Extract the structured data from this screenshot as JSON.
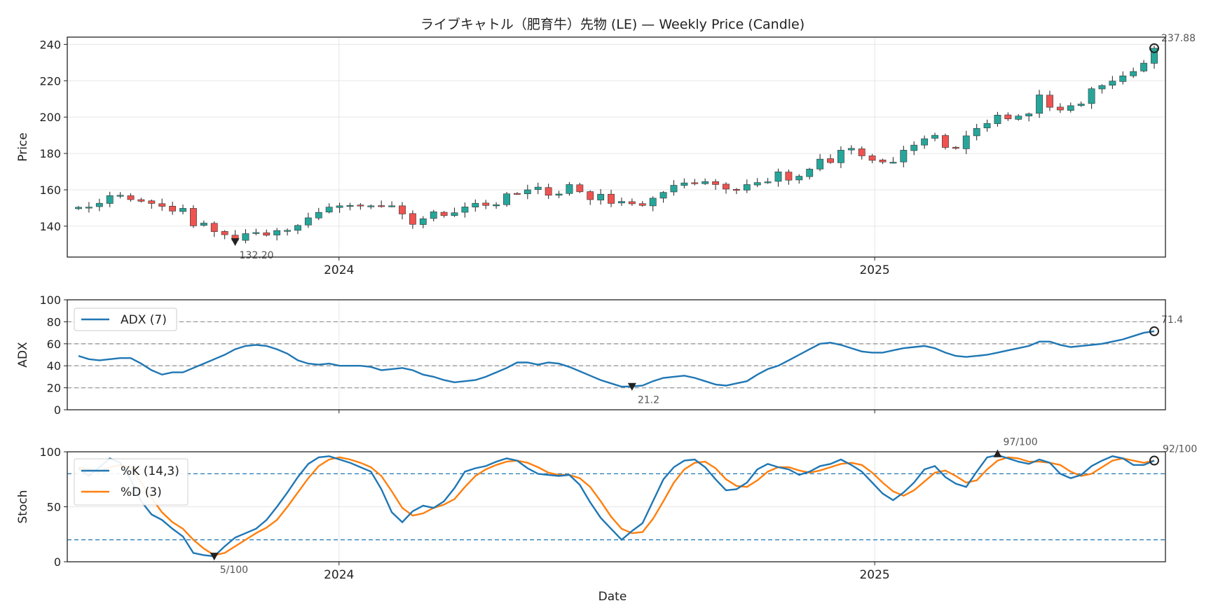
{
  "figure": {
    "title": "ライブキャトル（肥育牛）先物 (LE) — Weekly Price (Candle)",
    "xlabel": "Date",
    "x_ticks": [
      "2024",
      "2025"
    ],
    "colors": {
      "up": "#26a69a",
      "down": "#ef5350",
      "adx": "#1f77b4",
      "k": "#1f77b4",
      "d": "#ff7f0e",
      "ref": "#999999",
      "stoch_ref": "#1f77b4"
    }
  },
  "chart_data": [
    {
      "type": "candlestick",
      "ylabel": "Price",
      "ylim": [
        123,
        244
      ],
      "y_ticks": [
        140,
        160,
        180,
        200,
        220,
        240
      ],
      "grid": true,
      "x_start": "2023-07-07",
      "x_end": "2025-07-11",
      "x_ticks": [
        "2024",
        "2025"
      ],
      "close": [
        150.4,
        150.5,
        152.6,
        156.8,
        157.0,
        154.6,
        153.7,
        152.5,
        150.9,
        148.3,
        149.8,
        140.2,
        141.7,
        137.0,
        135.3,
        132.2,
        135.9,
        136.5,
        135.0,
        137.6,
        137.7,
        140.4,
        144.6,
        147.6,
        150.5,
        151.2,
        151.4,
        151.1,
        151.2,
        151.3,
        151.2,
        146.7,
        141.0,
        144.1,
        147.9,
        145.8,
        147.4,
        150.6,
        152.6,
        151.4,
        151.8,
        157.8,
        157.9,
        160.0,
        161.5,
        157.0,
        157.7,
        162.9,
        158.9,
        154.6,
        157.6,
        152.5,
        153.6,
        152.3,
        151.4,
        155.4,
        158.6,
        162.5,
        163.8,
        163.6,
        164.5,
        162.9,
        160.4,
        159.7,
        162.9,
        164.0,
        164.4,
        169.9,
        165.3,
        167.5,
        171.4,
        176.9,
        175.0,
        181.8,
        182.8,
        178.7,
        176.2,
        175.3,
        175.2,
        181.8,
        184.6,
        188.1,
        190.0,
        183.3,
        182.8,
        189.7,
        193.8,
        196.5,
        201.1,
        199.0,
        200.6,
        201.8,
        212.2,
        205.4,
        203.9,
        206.3,
        207.2,
        215.6,
        217.4,
        219.8,
        222.7,
        225.1,
        229.7,
        237.9
      ],
      "last_label": "237.88",
      "min_label": "132.20",
      "min_index": 15
    },
    {
      "type": "line",
      "ylabel": "ADX",
      "ylim": [
        0,
        100
      ],
      "y_ticks": [
        0,
        20,
        40,
        60,
        80,
        100
      ],
      "ref_lines": [
        20,
        40,
        60,
        80
      ],
      "series": [
        {
          "name": "ADX (7)",
          "values": [
            49,
            46,
            45,
            46,
            47,
            47,
            42,
            36,
            32,
            34,
            34,
            38,
            42,
            46,
            50,
            55,
            58,
            59,
            58,
            55,
            51,
            45,
            42,
            41,
            42,
            40,
            40,
            40,
            39,
            36,
            37,
            38,
            36,
            32,
            30,
            27,
            25,
            26,
            27,
            30,
            34,
            38,
            43,
            43,
            41,
            43,
            42,
            39,
            35,
            31,
            27,
            24,
            21,
            21.2,
            22,
            26,
            29,
            30,
            31,
            29,
            26,
            23,
            22,
            24,
            26,
            32,
            37,
            40,
            45,
            50,
            55,
            60,
            61,
            59,
            56,
            53,
            52,
            52,
            54,
            56,
            57,
            58,
            56,
            52,
            49,
            48,
            49,
            50,
            52,
            54,
            56,
            58,
            62,
            62,
            59,
            57,
            58,
            59,
            60,
            62,
            64,
            67,
            70,
            71.4
          ]
        }
      ],
      "last_label": "71.4",
      "min_label": "21.2",
      "min_index": 53
    },
    {
      "type": "line",
      "ylabel": "Stoch",
      "ylim": [
        0,
        100
      ],
      "y_ticks": [
        0,
        50,
        100
      ],
      "ref_lines": [
        20,
        80
      ],
      "series": [
        {
          "name": "%K (14,3)",
          "values": [
            85,
            78,
            86,
            94,
            90,
            75,
            55,
            43,
            38,
            30,
            23,
            8,
            6,
            5,
            14,
            22,
            26,
            30,
            38,
            50,
            63,
            77,
            89,
            95,
            96,
            93,
            90,
            86,
            82,
            66,
            45,
            36,
            46,
            51,
            49,
            55,
            67,
            82,
            85,
            87,
            91,
            94,
            92,
            85,
            80,
            79,
            78,
            79,
            70,
            54,
            40,
            30,
            20,
            28,
            35,
            55,
            75,
            86,
            92,
            93,
            86,
            75,
            65,
            66,
            72,
            84,
            89,
            86,
            84,
            79,
            82,
            87,
            89,
            93,
            88,
            82,
            72,
            62,
            56,
            63,
            72,
            84,
            87,
            77,
            71,
            68,
            82,
            95,
            97,
            94,
            91,
            89,
            93,
            90,
            80,
            76,
            79,
            87,
            92,
            96,
            94,
            88,
            88,
            92
          ]
        },
        {
          "name": "%D (3)",
          "values": [
            86,
            84,
            82,
            86,
            88,
            86,
            72,
            58,
            45,
            36,
            30,
            20,
            12,
            6,
            8,
            14,
            20,
            26,
            31,
            38,
            50,
            63,
            76,
            87,
            93,
            95,
            93,
            90,
            86,
            78,
            64,
            49,
            42,
            44,
            49,
            52,
            57,
            68,
            78,
            84,
            88,
            91,
            92,
            90,
            86,
            81,
            79,
            79,
            76,
            68,
            55,
            41,
            30,
            26,
            27,
            39,
            55,
            72,
            84,
            90,
            91,
            85,
            75,
            69,
            68,
            74,
            82,
            86,
            86,
            83,
            81,
            83,
            86,
            89,
            90,
            88,
            81,
            72,
            64,
            60,
            65,
            73,
            81,
            83,
            78,
            72,
            74,
            84,
            92,
            95,
            94,
            91,
            91,
            90,
            88,
            82,
            78,
            80,
            86,
            92,
            94,
            92,
            90,
            92
          ]
        }
      ],
      "max_label": "97/100",
      "max_index": 88,
      "min_label": "5/100",
      "min_index": 13,
      "last_label": "92/100"
    }
  ]
}
